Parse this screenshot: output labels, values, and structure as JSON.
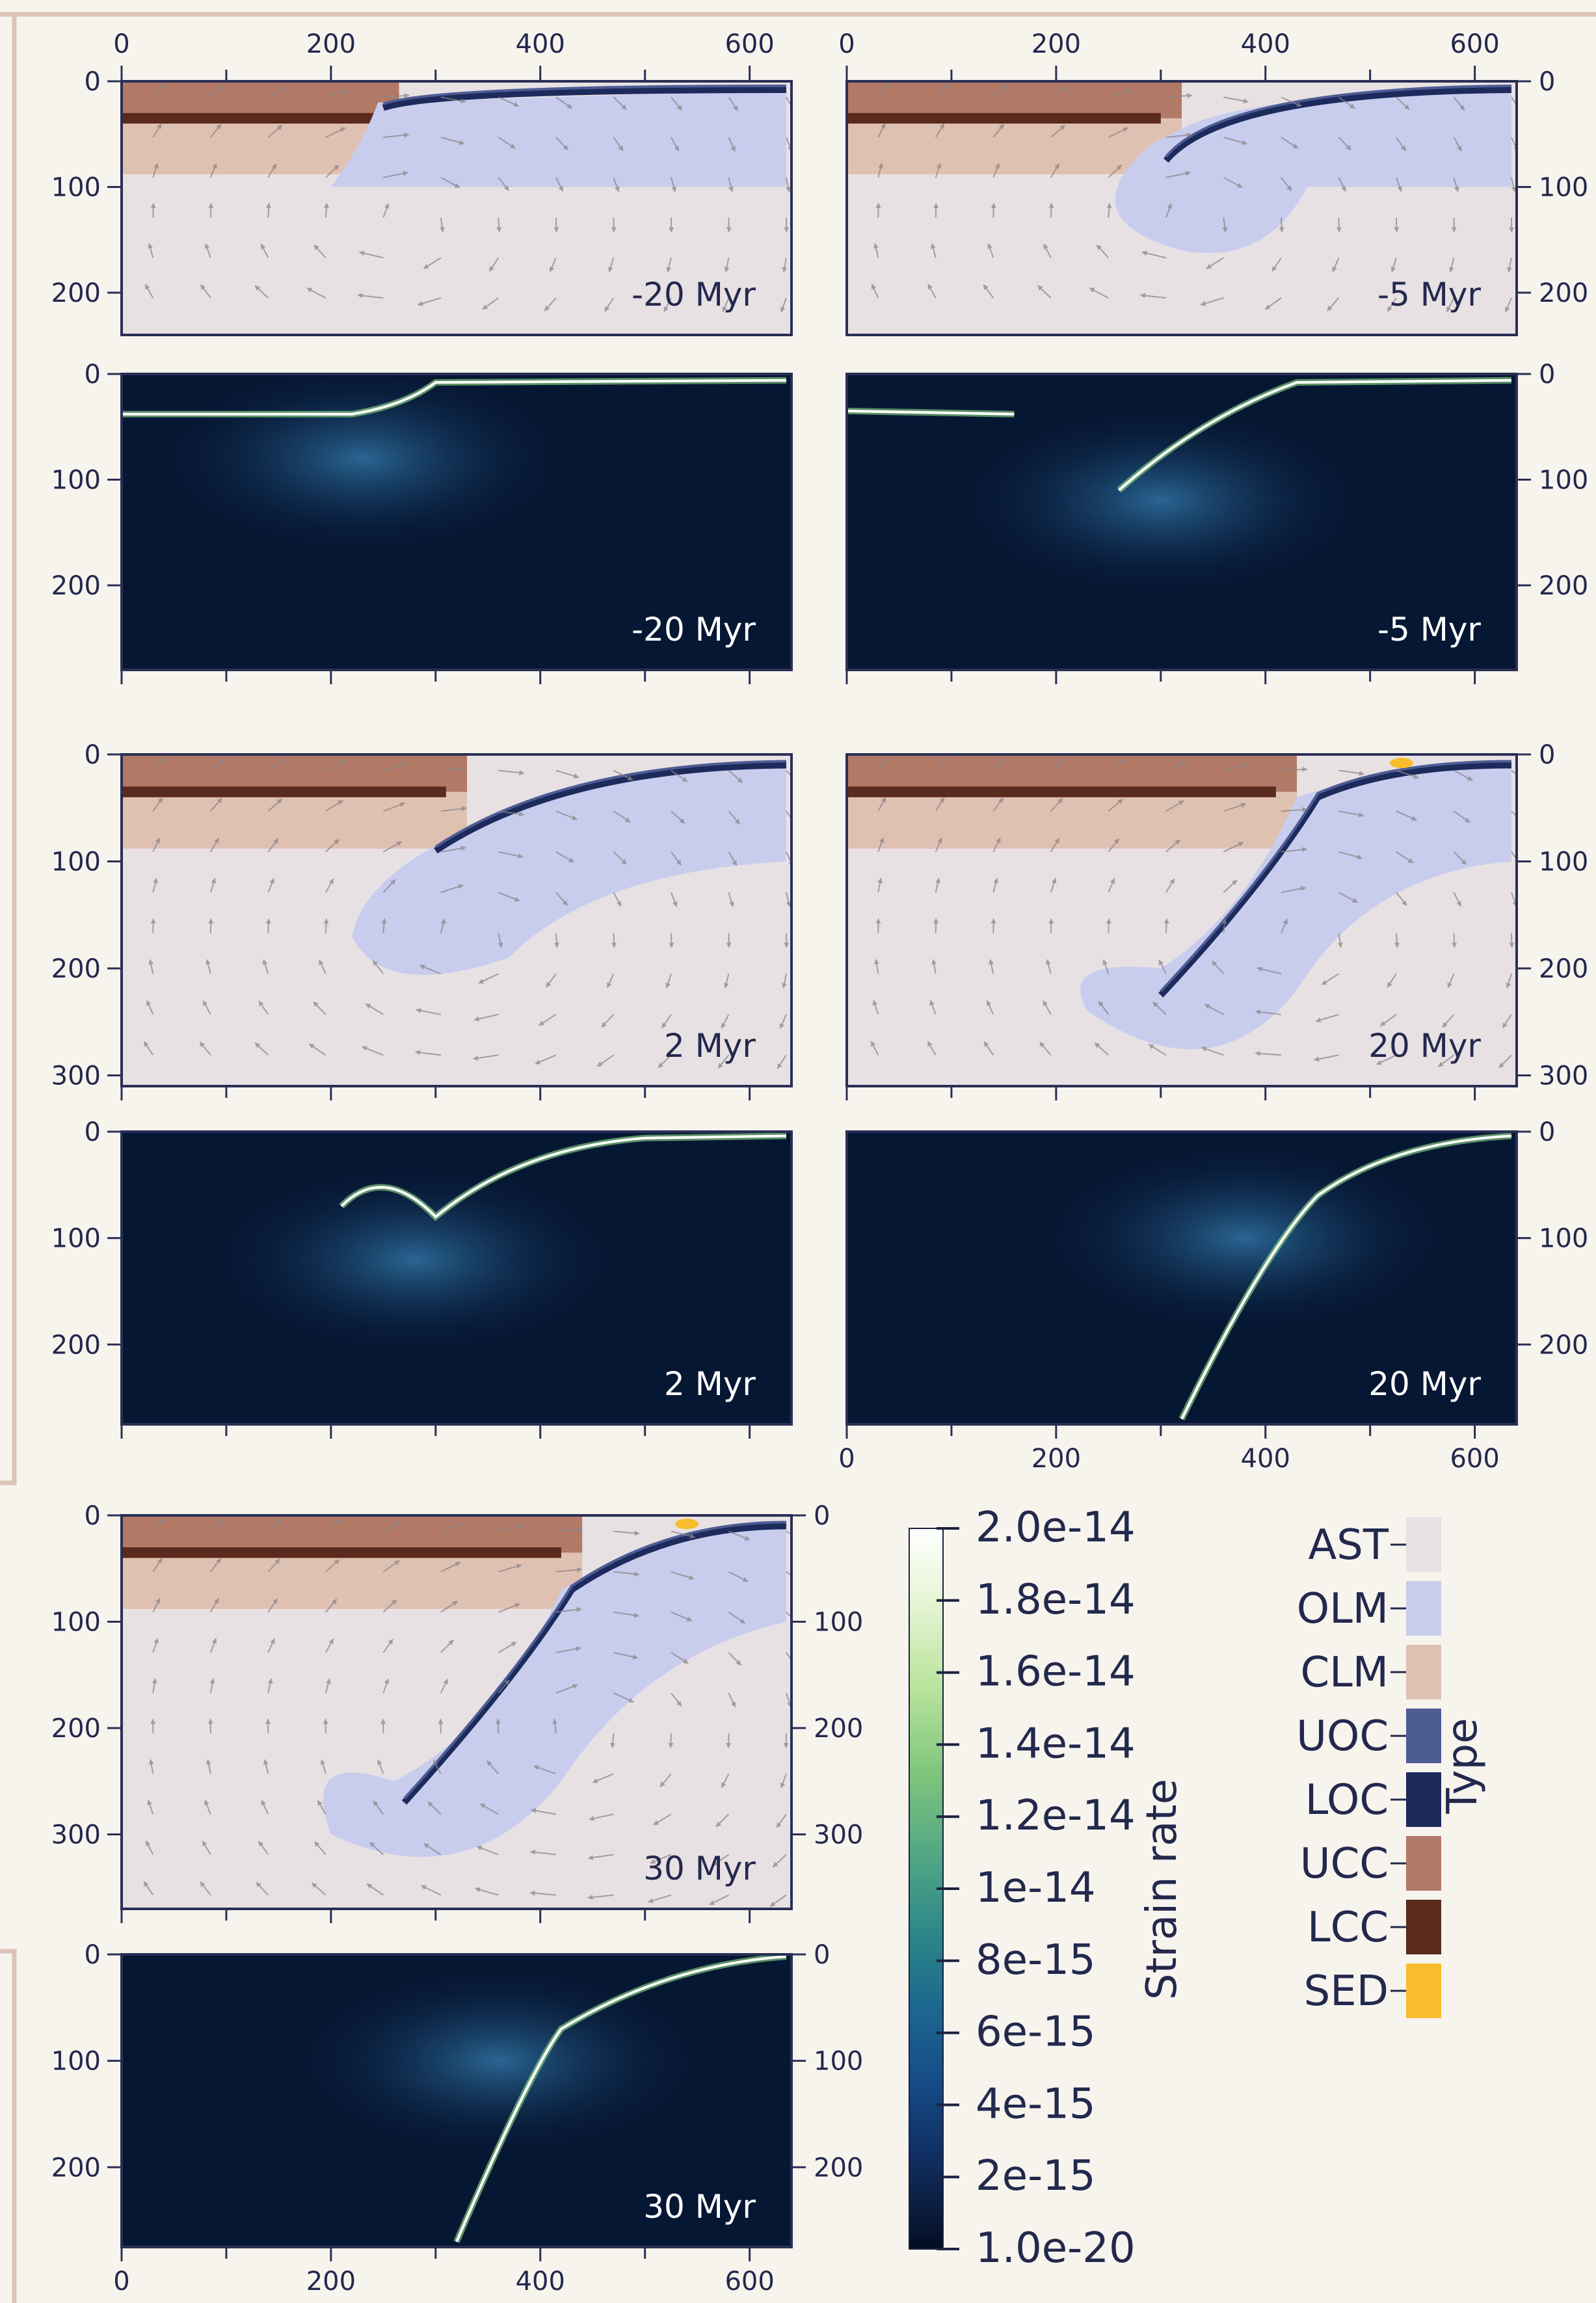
{
  "panels": [
    {
      "kind": "type",
      "time": "-20 Myr"
    },
    {
      "kind": "type",
      "time": "-5 Myr"
    },
    {
      "kind": "strain",
      "time": "-20 Myr"
    },
    {
      "kind": "strain",
      "time": "-5 Myr"
    },
    {
      "kind": "type",
      "time": "2 Myr"
    },
    {
      "kind": "type",
      "time": "20 Myr"
    },
    {
      "kind": "strain",
      "time": "2 Myr"
    },
    {
      "kind": "strain",
      "time": "20 Myr"
    },
    {
      "kind": "type",
      "time": "30 Myr"
    },
    {
      "kind": "strain",
      "time": "30 Myr"
    }
  ],
  "axes": {
    "x_ticks": [
      "0",
      "200",
      "400",
      "600"
    ],
    "depth_ticks_short": [
      "0",
      "100",
      "200"
    ],
    "depth_ticks_long": [
      "0",
      "100",
      "200",
      "300"
    ]
  },
  "colorbar": {
    "title": "Strain rate",
    "labels": [
      "2.0e-14",
      "1.8e-14",
      "1.6e-14",
      "1.4e-14",
      "1.2e-14",
      "1e-14",
      "8e-15",
      "6e-15",
      "4e-15",
      "2e-15",
      "1.0e-20"
    ],
    "colors": [
      "#ffffff",
      "#e7f5d5",
      "#b9e49d",
      "#7fc57c",
      "#4fa584",
      "#2b8589",
      "#1c6690",
      "#164b86",
      "#102f62",
      "#0b1e3f",
      "#030d22"
    ]
  },
  "legend": {
    "title": "Type",
    "items": [
      {
        "label": "AST",
        "color": "#e8e1e4"
      },
      {
        "label": "OLM",
        "color": "#c8cdee"
      },
      {
        "label": "CLM",
        "color": "#dfc1b2"
      },
      {
        "label": "UOC",
        "color": "#4e5c94"
      },
      {
        "label": "LOC",
        "color": "#1d2a5c"
      },
      {
        "label": "UCC",
        "color": "#b27966"
      },
      {
        "label": "LCC",
        "color": "#5a2a1c"
      },
      {
        "label": "SED",
        "color": "#f8bd2c"
      }
    ]
  }
}
